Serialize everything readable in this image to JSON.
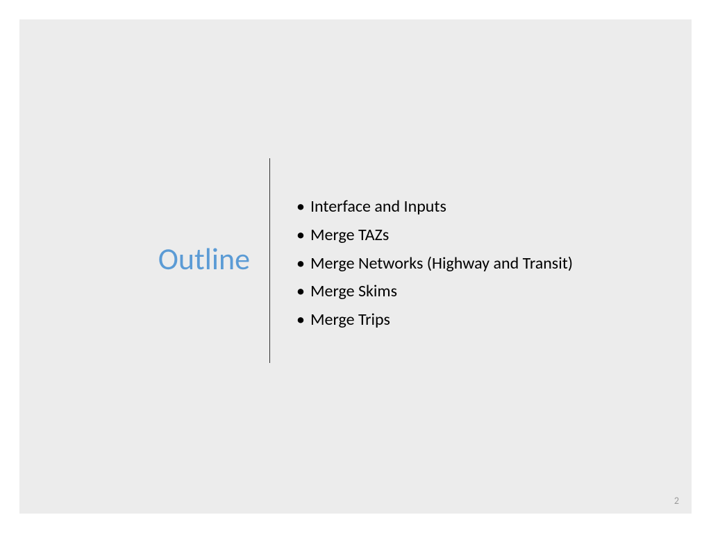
{
  "slide": {
    "title": "Outline",
    "title_color": "#5b9bd5",
    "title_fontsize": 44,
    "background_color": "#ececec",
    "outer_background": "#ffffff",
    "divider_color": "#333333",
    "bullets": [
      "Interface and Inputs",
      "Merge TAZs",
      "Merge Networks (Highway and Transit)",
      "Merge Skims",
      "Merge Trips"
    ],
    "bullet_fontsize": 24,
    "bullet_color": "#000000",
    "page_number": "2",
    "page_number_color": "#9a9a9a"
  }
}
